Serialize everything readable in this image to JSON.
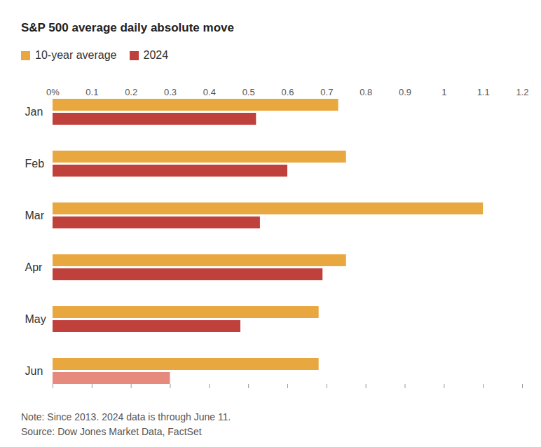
{
  "chart_data": {
    "type": "bar",
    "orientation": "horizontal",
    "title": "S&P 500 average daily absolute move",
    "categories": [
      "Jan",
      "Feb",
      "Mar",
      "Apr",
      "May",
      "Jun"
    ],
    "series": [
      {
        "name": "10-year average",
        "color": "#e9a83f",
        "values": [
          0.73,
          0.75,
          1.1,
          0.75,
          0.68,
          0.68
        ]
      },
      {
        "name": "2024",
        "color": "#c0403c",
        "colors": [
          "#c0403c",
          "#c0403c",
          "#c0403c",
          "#c0403c",
          "#c0403c",
          "#e58a7c"
        ],
        "values": [
          0.52,
          0.6,
          0.53,
          0.69,
          0.48,
          0.3
        ]
      }
    ],
    "xlim": [
      0,
      1.2
    ],
    "xticks": [
      {
        "value": 0,
        "label": "0%"
      },
      0.1,
      0.2,
      0.3,
      0.4,
      0.5,
      0.6,
      0.7,
      0.8,
      0.9,
      1,
      1.1,
      1.2
    ],
    "grid": false,
    "legend": "top",
    "note": "Note: Since 2013. 2024 data is through June 11.",
    "source": "Source: Dow Jones Market Data, FactSet"
  }
}
